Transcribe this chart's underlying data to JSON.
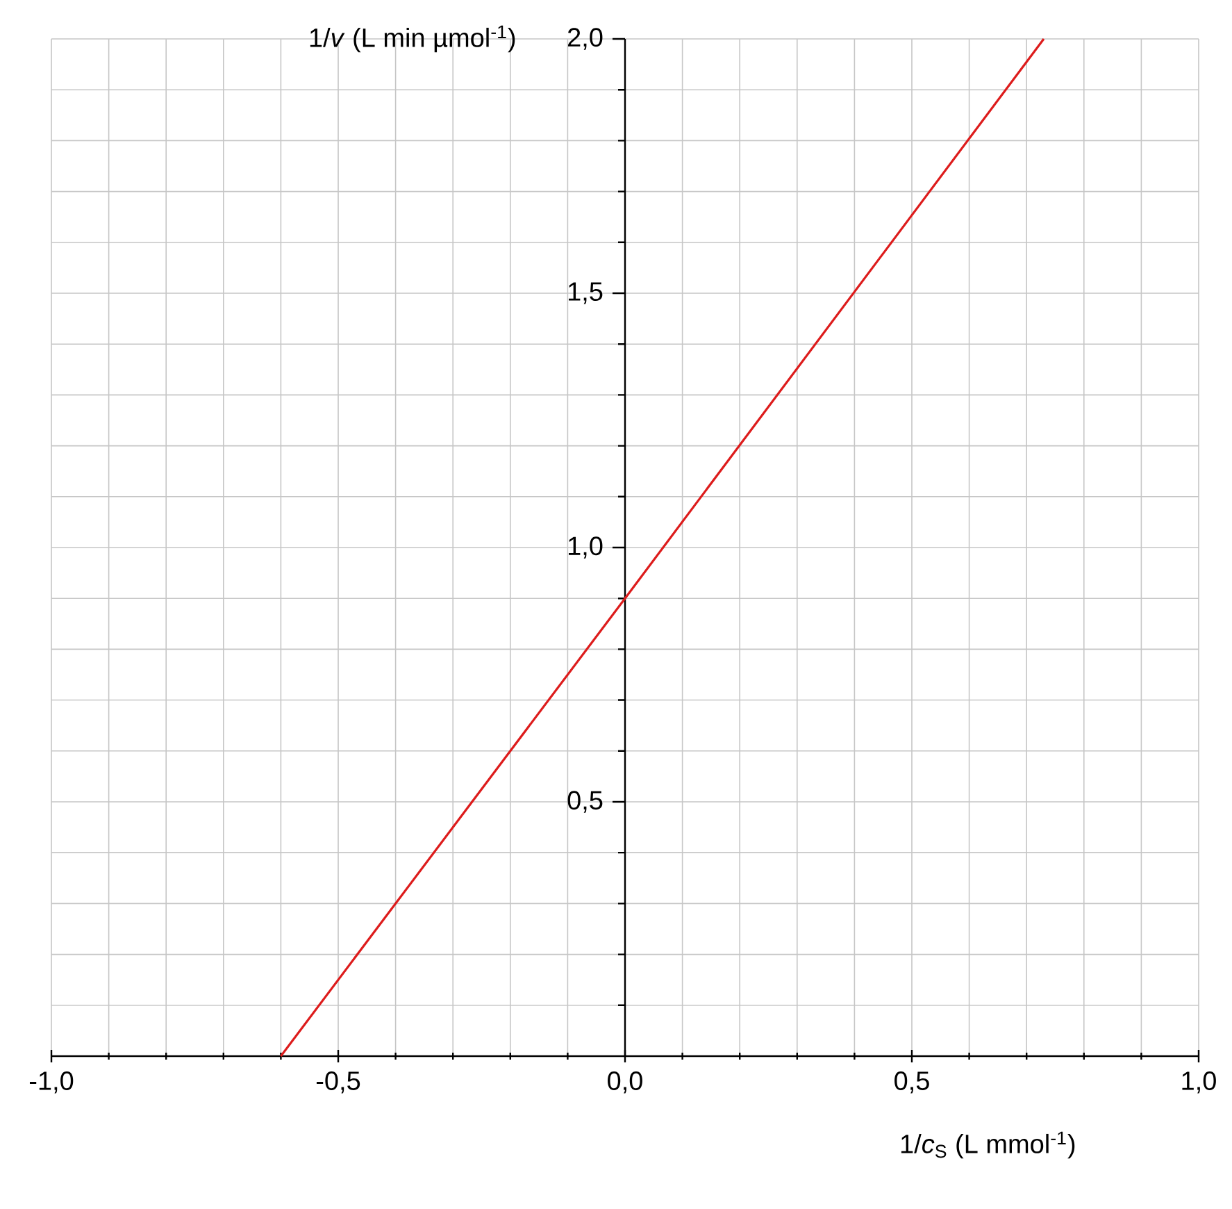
{
  "chart_data": {
    "type": "line",
    "xlabel": "1/*c*$_{S}$ (L mmol$^{-1}$)",
    "ylabel": "1/*v* (L min µmol$^{-1}$)",
    "x": [
      -0.6,
      0,
      0.73
    ],
    "series": [
      {
        "color": "#dd1c1c",
        "values": [
          0,
          0.9,
          2.0
        ]
      }
    ],
    "xlim": [
      -1,
      1
    ],
    "ylim": [
      0,
      2
    ],
    "xticks": [
      {
        "value": -1,
        "label": "-1,0"
      },
      {
        "value": -0.9,
        "label": null
      },
      {
        "value": -0.8,
        "label": null
      },
      {
        "value": -0.7,
        "label": null
      },
      {
        "value": -0.6,
        "label": null
      },
      {
        "value": -0.5,
        "label": "-0,5"
      },
      {
        "value": -0.4,
        "label": null
      },
      {
        "value": -0.3,
        "label": null
      },
      {
        "value": -0.2,
        "label": null
      },
      {
        "value": -0.1,
        "label": null
      },
      {
        "value": 0,
        "label": "0,0"
      },
      {
        "value": 0.1,
        "label": null
      },
      {
        "value": 0.2,
        "label": null
      },
      {
        "value": 0.3,
        "label": null
      },
      {
        "value": 0.4,
        "label": null
      },
      {
        "value": 0.5,
        "label": "0,5"
      },
      {
        "value": 0.6,
        "label": null
      },
      {
        "value": 0.7,
        "label": null
      },
      {
        "value": 0.8,
        "label": null
      },
      {
        "value": 0.9,
        "label": null
      },
      {
        "value": 1,
        "label": "1,0"
      }
    ],
    "yticks": [
      {
        "value": 0.1,
        "label": null
      },
      {
        "value": 0.2,
        "label": null
      },
      {
        "value": 0.3,
        "label": null
      },
      {
        "value": 0.4,
        "label": null
      },
      {
        "value": 0.5,
        "label": "0,5"
      },
      {
        "value": 0.6,
        "label": null
      },
      {
        "value": 0.7,
        "label": null
      },
      {
        "value": 0.8,
        "label": null
      },
      {
        "value": 0.9,
        "label": null
      },
      {
        "value": 1.0,
        "label": "1,0"
      },
      {
        "value": 1.1,
        "label": null
      },
      {
        "value": 1.2,
        "label": null
      },
      {
        "value": 1.3,
        "label": null
      },
      {
        "value": 1.4,
        "label": null
      },
      {
        "value": 1.5,
        "label": "1,5"
      },
      {
        "value": 1.6,
        "label": null
      },
      {
        "value": 1.7,
        "label": null
      },
      {
        "value": 1.8,
        "label": null
      },
      {
        "value": 1.9,
        "label": null
      },
      {
        "value": 2.0,
        "label": "2,0"
      }
    ],
    "grid": true,
    "marker": "none",
    "line_style": "solid"
  }
}
